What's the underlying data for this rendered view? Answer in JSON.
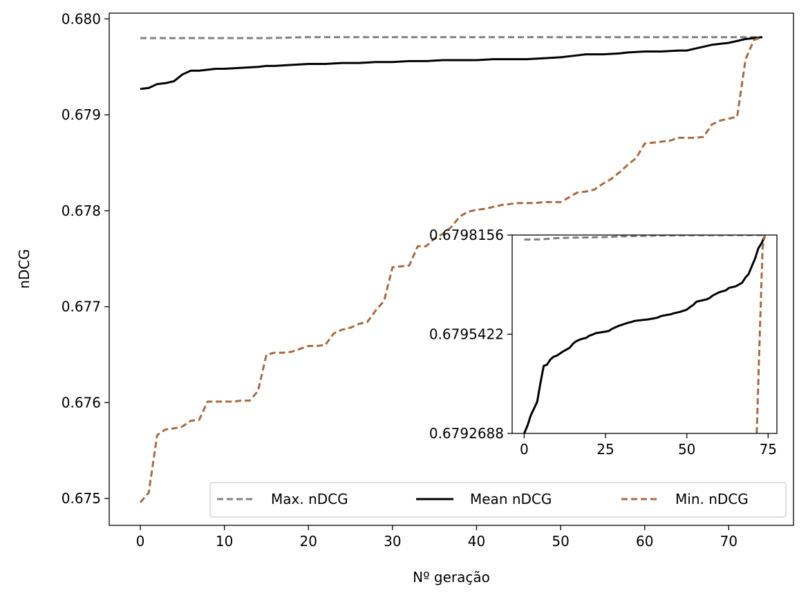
{
  "chart_data": {
    "type": "line",
    "title": "",
    "xlabel": "Nº geração",
    "ylabel": "nDCG",
    "xlim": [
      -3.7,
      77.7
    ],
    "ylim": [
      0.67472,
      0.68006
    ],
    "xticks": [
      0,
      10,
      20,
      30,
      40,
      50,
      60,
      70
    ],
    "xtick_labels": [
      "0",
      "10",
      "20",
      "30",
      "40",
      "50",
      "60",
      "70"
    ],
    "yticks": [
      0.675,
      0.676,
      0.677,
      0.678,
      0.679,
      0.68
    ],
    "ytick_labels": [
      "0.675",
      "0.676",
      "0.677",
      "0.678",
      "0.679",
      "0.680"
    ],
    "grid": false,
    "legend": {
      "position": "bottom-right",
      "columns": 3
    },
    "series": [
      {
        "name": "Max. nDCG",
        "style": "dashed",
        "color": "#808080",
        "x": [
          0,
          5,
          10,
          15,
          20,
          30,
          40,
          45,
          50,
          55,
          60,
          65,
          70,
          74
        ],
        "y": [
          0.6798,
          0.6798,
          0.6798,
          0.6798,
          0.67981,
          0.67981,
          0.67981,
          0.67981,
          0.67981,
          0.67981,
          0.67981,
          0.67981,
          0.67981,
          0.67981
        ]
      },
      {
        "name": "Mean nDCG",
        "style": "solid",
        "color": "#000000",
        "x": [
          0,
          1,
          2,
          3,
          4,
          5,
          6,
          7,
          8,
          9,
          10,
          12,
          14,
          15,
          16,
          18,
          20,
          22,
          24,
          26,
          28,
          30,
          32,
          34,
          36,
          38,
          40,
          42,
          44,
          46,
          48,
          50,
          51,
          52,
          53,
          55,
          57,
          58,
          60,
          62,
          64,
          65,
          66,
          67,
          68,
          69,
          70,
          71,
          72,
          73,
          74
        ],
        "y": [
          0.67927,
          0.67928,
          0.67932,
          0.67933,
          0.67935,
          0.67942,
          0.67946,
          0.67946,
          0.67947,
          0.67948,
          0.67948,
          0.67949,
          0.6795,
          0.67951,
          0.67951,
          0.67952,
          0.67953,
          0.67953,
          0.67954,
          0.67954,
          0.67955,
          0.67955,
          0.67956,
          0.67956,
          0.67957,
          0.67957,
          0.67957,
          0.67958,
          0.67958,
          0.67958,
          0.67959,
          0.6796,
          0.67961,
          0.67962,
          0.67963,
          0.67963,
          0.67964,
          0.67965,
          0.67966,
          0.67966,
          0.67967,
          0.67967,
          0.67969,
          0.67971,
          0.67973,
          0.67974,
          0.67975,
          0.67977,
          0.67979,
          0.6798,
          0.67981
        ]
      },
      {
        "name": "Min. nDCG",
        "style": "dashed",
        "color": "#a66b43",
        "x": [
          0,
          1,
          2,
          3,
          4,
          5,
          6,
          7,
          8,
          9,
          10,
          11,
          12,
          13,
          14,
          15,
          16,
          17,
          18,
          19,
          20,
          21,
          22,
          23,
          24,
          25,
          26,
          27,
          28,
          29,
          30,
          31,
          32,
          33,
          34,
          35,
          36,
          37,
          38,
          39,
          40,
          41,
          42,
          43,
          44,
          45,
          46,
          47,
          48,
          49,
          50,
          51,
          52,
          53,
          54,
          55,
          56,
          57,
          58,
          59,
          60,
          61,
          62,
          63,
          64,
          65,
          66,
          67,
          68,
          69,
          70,
          71,
          72,
          73,
          74
        ],
        "y": [
          0.67496,
          0.67506,
          0.67566,
          0.67572,
          0.67573,
          0.67575,
          0.67581,
          0.67582,
          0.67601,
          0.67601,
          0.67601,
          0.67601,
          0.67602,
          0.67602,
          0.67612,
          0.6765,
          0.67652,
          0.67652,
          0.67653,
          0.67656,
          0.67659,
          0.67659,
          0.6766,
          0.67672,
          0.67676,
          0.67678,
          0.67682,
          0.67684,
          0.67696,
          0.67706,
          0.67741,
          0.67742,
          0.67743,
          0.67763,
          0.67763,
          0.67771,
          0.67776,
          0.67783,
          0.67794,
          0.67799,
          0.67801,
          0.67802,
          0.67804,
          0.67806,
          0.67807,
          0.67808,
          0.67808,
          0.67808,
          0.67809,
          0.67809,
          0.67809,
          0.67814,
          0.67819,
          0.6782,
          0.67822,
          0.67828,
          0.67833,
          0.6784,
          0.67848,
          0.67855,
          0.6787,
          0.67871,
          0.67872,
          0.67873,
          0.67876,
          0.67876,
          0.67876,
          0.67877,
          0.6789,
          0.67894,
          0.67896,
          0.67898,
          0.67958,
          0.67978,
          0.67981
        ]
      }
    ],
    "inset": {
      "xlim": [
        -3.7,
        77.7
      ],
      "ylim": [
        0.6792688,
        0.6798156
      ],
      "xticks": [
        0,
        25,
        50,
        75
      ],
      "xtick_labels": [
        "0",
        "25",
        "50",
        "75"
      ],
      "yticks": [
        0.6792688,
        0.6795422,
        0.6798156
      ],
      "ytick_labels": [
        "0.6792688",
        "0.6795422",
        "0.6798156"
      ],
      "series": [
        {
          "name": "Max. nDCG",
          "style": "dashed",
          "color": "#808080",
          "x": [
            0,
            5,
            10,
            15,
            20,
            25,
            30,
            35,
            40,
            45,
            50,
            55,
            60,
            65,
            70,
            74
          ],
          "y": [
            0.679803,
            0.6798035,
            0.679807,
            0.6798085,
            0.679809,
            0.67981,
            0.679812,
            0.679813,
            0.679814,
            0.6798145,
            0.6798148,
            0.679815,
            0.6798152,
            0.6798153,
            0.6798155,
            0.6798156
          ]
        },
        {
          "name": "Mean nDCG",
          "style": "solid",
          "color": "#000000",
          "x": [
            0,
            1,
            2,
            3,
            4,
            5,
            6,
            7,
            8,
            9,
            10,
            12,
            13,
            14,
            15,
            16,
            17,
            18,
            19,
            20,
            21,
            22,
            24,
            26,
            27,
            28,
            29,
            30,
            31,
            32,
            33,
            34,
            36,
            38,
            40,
            41,
            42,
            43,
            45,
            46,
            48,
            50,
            51,
            52,
            53,
            54,
            55,
            56,
            57,
            58,
            60,
            62,
            63,
            64,
            65,
            66,
            67,
            68,
            69,
            70,
            71,
            72,
            73,
            74
          ],
          "y": [
            0.6792688,
            0.67929,
            0.679318,
            0.679337,
            0.679356,
            0.679408,
            0.679455,
            0.679458,
            0.679472,
            0.67948,
            0.679483,
            0.679495,
            0.6795,
            0.679505,
            0.679516,
            0.679523,
            0.679527,
            0.67953,
            0.679532,
            0.679538,
            0.679541,
            0.679545,
            0.679548,
            0.679551,
            0.679557,
            0.679561,
            0.679565,
            0.679568,
            0.679571,
            0.679574,
            0.679576,
            0.679579,
            0.679581,
            0.679583,
            0.679586,
            0.679588,
            0.679592,
            0.679594,
            0.679597,
            0.6796,
            0.679604,
            0.67961,
            0.679617,
            0.679623,
            0.679632,
            0.679634,
            0.679636,
            0.679638,
            0.679642,
            0.679649,
            0.679658,
            0.679663,
            0.67967,
            0.679672,
            0.679674,
            0.679679,
            0.679684,
            0.679698,
            0.679708,
            0.67973,
            0.679751,
            0.679779,
            0.679793,
            0.679813
          ]
        },
        {
          "name": "Min. nDCG",
          "style": "dashed",
          "color": "#a66b43",
          "x": [
            71.5,
            72.5,
            73.3,
            74
          ],
          "y": [
            0.6792688,
            0.67956,
            0.67978,
            0.6798156
          ]
        }
      ]
    }
  }
}
